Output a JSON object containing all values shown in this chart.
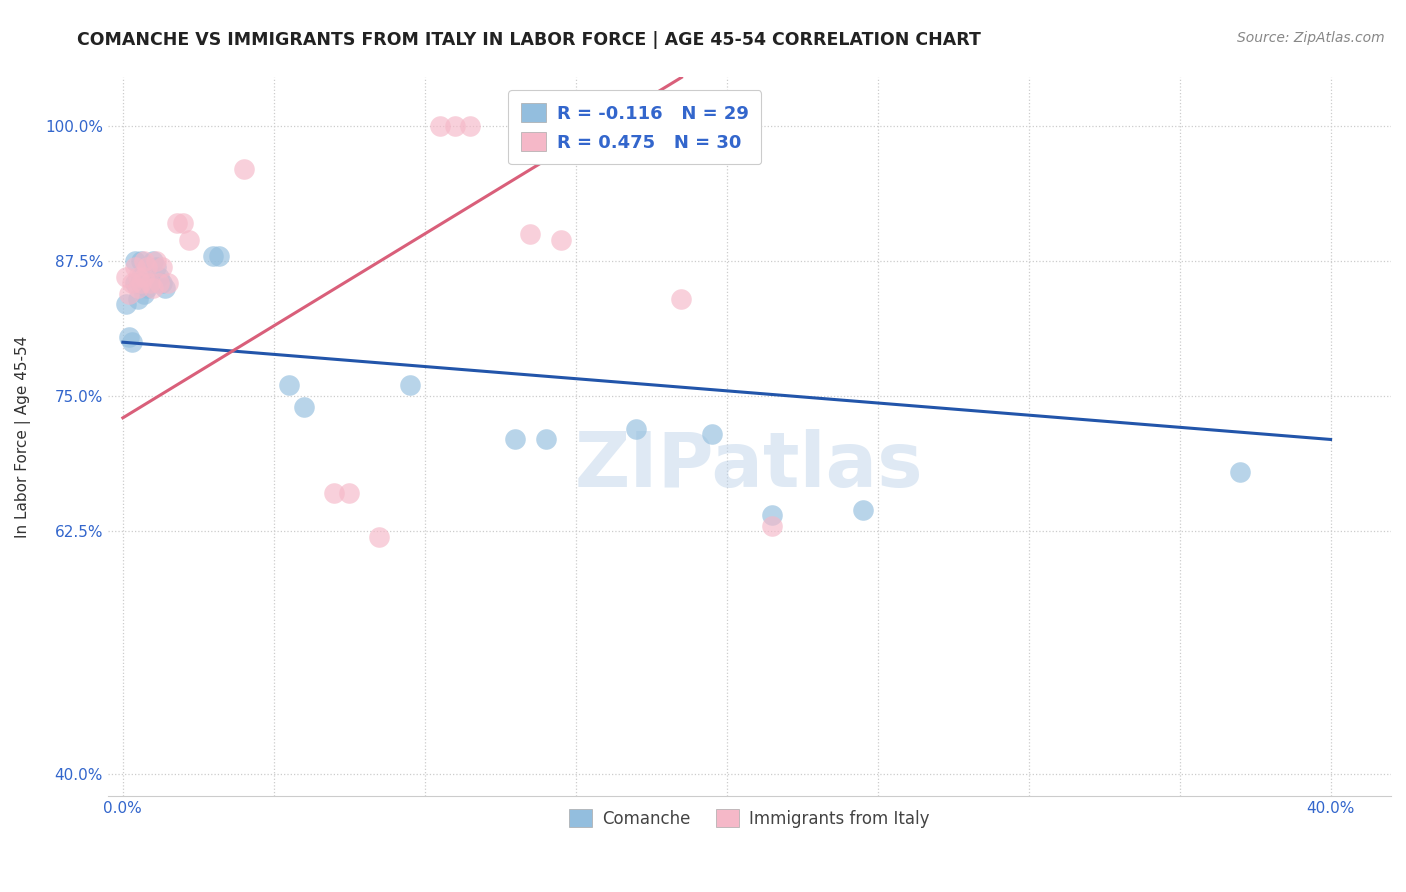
{
  "title": "COMANCHE VS IMMIGRANTS FROM ITALY IN LABOR FORCE | AGE 45-54 CORRELATION CHART",
  "source": "Source: ZipAtlas.com",
  "ylabel": "In Labor Force | Age 45-54",
  "watermark": "ZIPatlas",
  "xlim": [
    -0.005,
    0.42
  ],
  "ylim": [
    0.38,
    1.045
  ],
  "xtick_positions": [
    0.0,
    0.05,
    0.1,
    0.15,
    0.2,
    0.25,
    0.3,
    0.35,
    0.4
  ],
  "xticklabels": [
    "0.0%",
    "",
    "",
    "",
    "",
    "",
    "",
    "",
    "40.0%"
  ],
  "ytick_positions": [
    0.4,
    0.625,
    0.75,
    0.875,
    1.0
  ],
  "yticklabels": [
    "40.0%",
    "62.5%",
    "75.0%",
    "87.5%",
    "100.0%"
  ],
  "legend_blue_label": "Comanche",
  "legend_pink_label": "Immigrants from Italy",
  "R_blue": -0.116,
  "N_blue": 29,
  "R_pink": 0.475,
  "N_pink": 30,
  "blue_color": "#93bede",
  "pink_color": "#f5b8c8",
  "blue_line_color": "#2255aa",
  "pink_line_color": "#d95f7a",
  "blue_points": [
    [
      0.001,
      0.835
    ],
    [
      0.002,
      0.805
    ],
    [
      0.003,
      0.8
    ],
    [
      0.004,
      0.875
    ],
    [
      0.004,
      0.855
    ],
    [
      0.005,
      0.84
    ],
    [
      0.006,
      0.875
    ],
    [
      0.006,
      0.86
    ],
    [
      0.007,
      0.855
    ],
    [
      0.007,
      0.845
    ],
    [
      0.008,
      0.85
    ],
    [
      0.009,
      0.855
    ],
    [
      0.01,
      0.875
    ],
    [
      0.011,
      0.87
    ],
    [
      0.012,
      0.86
    ],
    [
      0.013,
      0.855
    ],
    [
      0.014,
      0.85
    ],
    [
      0.03,
      0.88
    ],
    [
      0.032,
      0.88
    ],
    [
      0.055,
      0.76
    ],
    [
      0.06,
      0.74
    ],
    [
      0.095,
      0.76
    ],
    [
      0.13,
      0.71
    ],
    [
      0.14,
      0.71
    ],
    [
      0.17,
      0.72
    ],
    [
      0.195,
      0.715
    ],
    [
      0.215,
      0.64
    ],
    [
      0.245,
      0.645
    ],
    [
      0.37,
      0.68
    ]
  ],
  "pink_points": [
    [
      0.001,
      0.86
    ],
    [
      0.002,
      0.845
    ],
    [
      0.003,
      0.855
    ],
    [
      0.004,
      0.87
    ],
    [
      0.005,
      0.86
    ],
    [
      0.005,
      0.85
    ],
    [
      0.006,
      0.855
    ],
    [
      0.007,
      0.86
    ],
    [
      0.007,
      0.875
    ],
    [
      0.008,
      0.87
    ],
    [
      0.009,
      0.855
    ],
    [
      0.01,
      0.85
    ],
    [
      0.011,
      0.875
    ],
    [
      0.012,
      0.855
    ],
    [
      0.013,
      0.87
    ],
    [
      0.015,
      0.855
    ],
    [
      0.018,
      0.91
    ],
    [
      0.02,
      0.91
    ],
    [
      0.022,
      0.895
    ],
    [
      0.04,
      0.96
    ],
    [
      0.07,
      0.66
    ],
    [
      0.075,
      0.66
    ],
    [
      0.085,
      0.62
    ],
    [
      0.105,
      1.0
    ],
    [
      0.11,
      1.0
    ],
    [
      0.115,
      1.0
    ],
    [
      0.135,
      0.9
    ],
    [
      0.145,
      0.895
    ],
    [
      0.185,
      0.84
    ],
    [
      0.215,
      0.63
    ]
  ],
  "blue_trendline_x": [
    0.0,
    0.4
  ],
  "blue_trendline_y": [
    0.8,
    0.71
  ],
  "pink_trendline_x": [
    0.0,
    0.185
  ],
  "pink_trendline_y": [
    0.73,
    1.045
  ]
}
